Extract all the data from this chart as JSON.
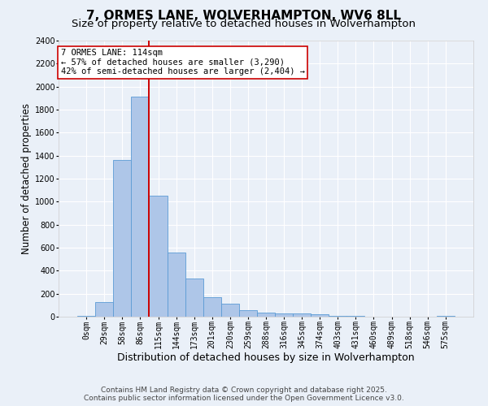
{
  "title_line1": "7, ORMES LANE, WOLVERHAMPTON, WV6 8LL",
  "title_line2": "Size of property relative to detached houses in Wolverhampton",
  "xlabel": "Distribution of detached houses by size in Wolverhampton",
  "ylabel": "Number of detached properties",
  "categories": [
    "0sqm",
    "29sqm",
    "58sqm",
    "86sqm",
    "115sqm",
    "144sqm",
    "173sqm",
    "201sqm",
    "230sqm",
    "259sqm",
    "288sqm",
    "316sqm",
    "345sqm",
    "374sqm",
    "403sqm",
    "431sqm",
    "460sqm",
    "489sqm",
    "518sqm",
    "546sqm",
    "575sqm"
  ],
  "values": [
    10,
    125,
    1360,
    1910,
    1055,
    560,
    335,
    170,
    110,
    60,
    35,
    30,
    25,
    20,
    5,
    5,
    0,
    0,
    0,
    0,
    10
  ],
  "bar_color": "#aec6e8",
  "bar_edge_color": "#5b9bd5",
  "vline_x_index": 4,
  "vline_color": "#cc0000",
  "annotation_text": "7 ORMES LANE: 114sqm\n← 57% of detached houses are smaller (3,290)\n42% of semi-detached houses are larger (2,404) →",
  "annotation_box_color": "#ffffff",
  "annotation_box_edge": "#cc0000",
  "ylim": [
    0,
    2400
  ],
  "yticks": [
    0,
    200,
    400,
    600,
    800,
    1000,
    1200,
    1400,
    1600,
    1800,
    2000,
    2200,
    2400
  ],
  "background_color": "#eaf0f8",
  "grid_color": "#ffffff",
  "footer_line1": "Contains HM Land Registry data © Crown copyright and database right 2025.",
  "footer_line2": "Contains public sector information licensed under the Open Government Licence v3.0.",
  "title_fontsize": 11,
  "subtitle_fontsize": 9.5,
  "xlabel_fontsize": 9,
  "ylabel_fontsize": 8.5,
  "tick_fontsize": 7,
  "footer_fontsize": 6.5,
  "annot_fontsize": 7.5
}
